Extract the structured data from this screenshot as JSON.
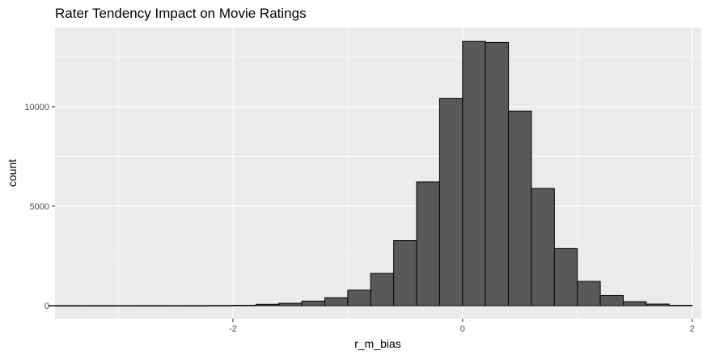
{
  "chart_data": {
    "type": "bar",
    "subtype": "histogram",
    "title": "Rater Tendency Impact on Movie Ratings",
    "xlabel": "r_m_bias",
    "ylabel": "count",
    "xlim": [
      -3.55,
      2.08
    ],
    "ylim": [
      -650,
      13980
    ],
    "x_ticks": [
      -2,
      0,
      2
    ],
    "x_tick_labels": [
      "-2",
      "0",
      "2"
    ],
    "y_ticks": [
      0,
      5000,
      10000
    ],
    "y_tick_labels": [
      "0",
      "5000",
      "10000"
    ],
    "grid": true,
    "legend": "none",
    "bin_width": 0.2,
    "bin_centers": [
      -3.5,
      -3.3,
      -3.1,
      -2.9,
      -2.7,
      -2.5,
      -2.3,
      -2.1,
      -1.9,
      -1.7,
      -1.5,
      -1.3,
      -1.1,
      -0.9,
      -0.7,
      -0.5,
      -0.3,
      -0.1,
      0.1,
      0.3,
      0.5,
      0.7,
      0.9,
      1.1,
      1.3,
      1.5,
      1.7,
      1.9
    ],
    "values": [
      5,
      3,
      2,
      3,
      2,
      3,
      5,
      10,
      20,
      70,
      120,
      230,
      400,
      780,
      1620,
      3270,
      6220,
      10420,
      13280,
      13230,
      9780,
      5890,
      2870,
      1220,
      510,
      200,
      80,
      20
    ],
    "colors": {
      "bar_fill": "#595959",
      "bar_stroke": "#000000",
      "panel_background": "#ebebeb",
      "grid": "#ffffff",
      "tick_text": "#4d4d4d",
      "tick_mark": "#333333"
    }
  }
}
